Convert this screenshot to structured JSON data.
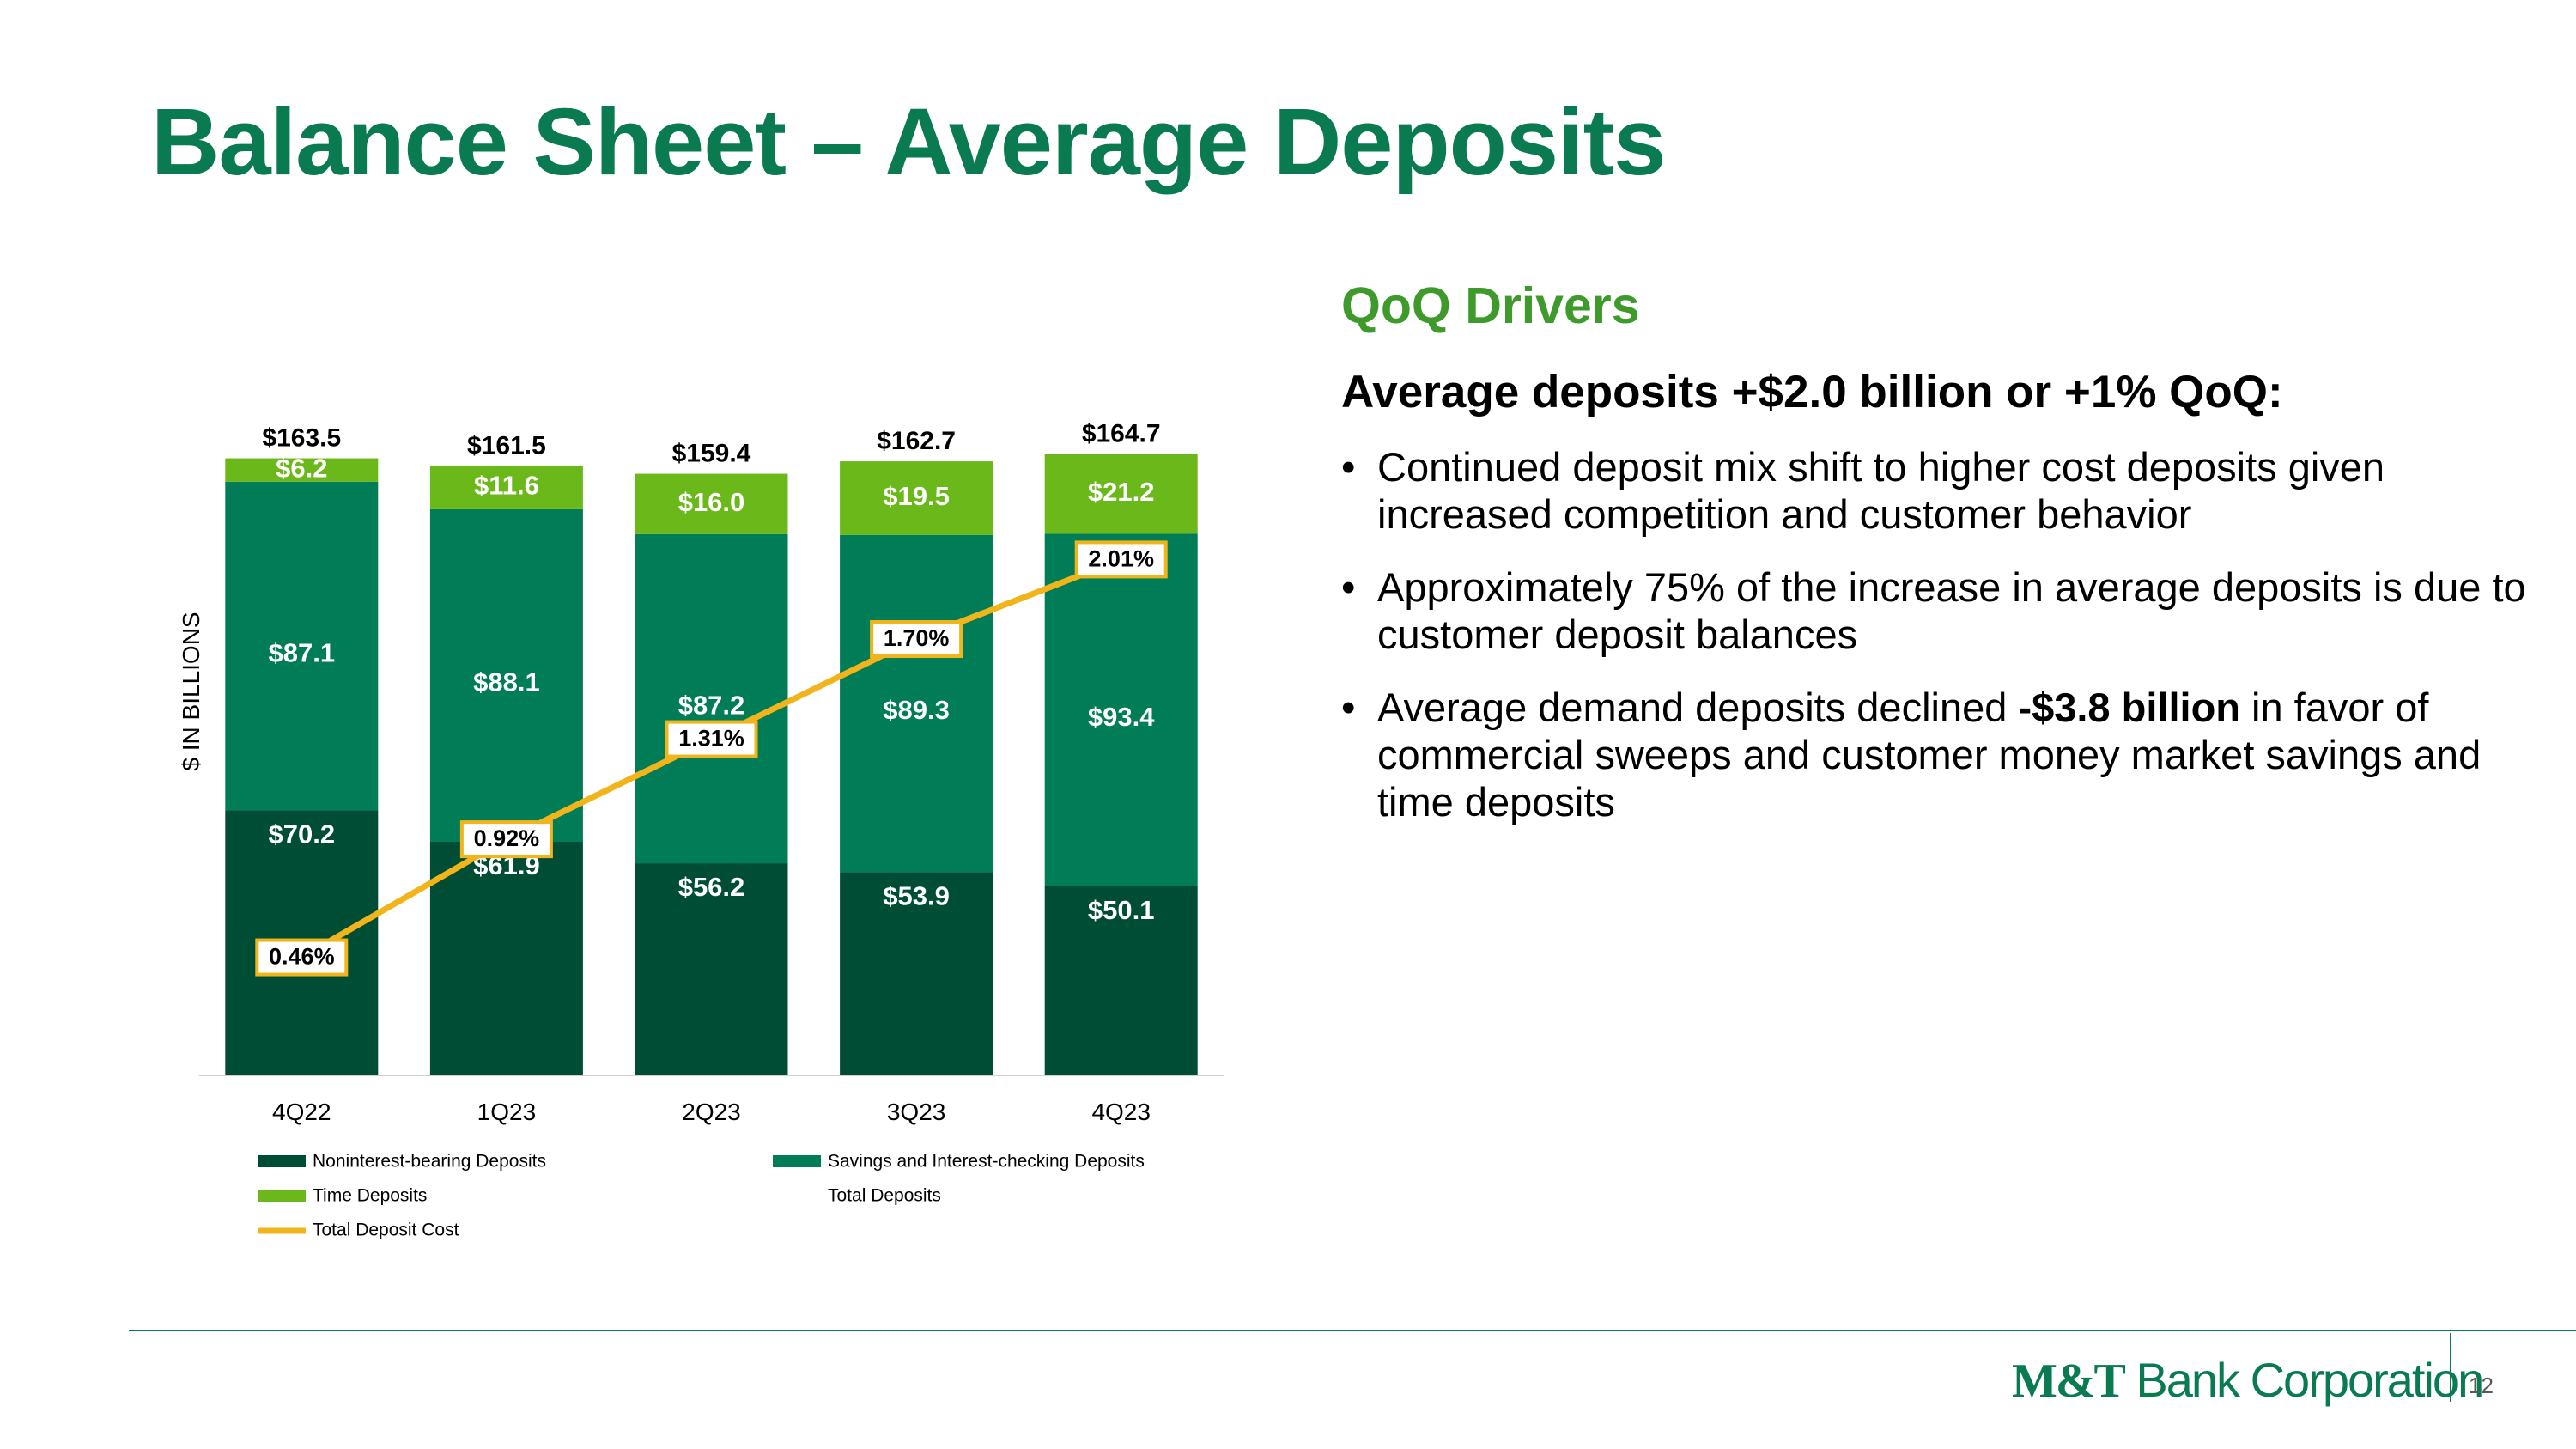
{
  "slide": {
    "title": "Balance Sheet – Average Deposits",
    "page_number": "12"
  },
  "drivers": {
    "heading": "QoQ Drivers",
    "lead": "Average deposits +$2.0 billion or +1% QoQ:",
    "bullets": [
      {
        "text": "Continued deposit mix shift to higher cost deposits given increased competition and customer behavior"
      },
      {
        "text": "Approximately 75% of the increase in average deposits is due to customer deposit balances"
      },
      {
        "pre": "Average demand deposits declined ",
        "bold": "-$3.8 billion",
        "post": " in favor of commercial sweeps and customer money market savings and time deposits"
      }
    ]
  },
  "logo": {
    "mt": "M&T",
    "rest": " Bank Corporation"
  },
  "chart_data": {
    "type": "bar",
    "stacked": true,
    "ylabel": "$ IN BILLIONS",
    "ylim": [
      0,
      170
    ],
    "categories": [
      "4Q22",
      "1Q23",
      "2Q23",
      "3Q23",
      "4Q23"
    ],
    "series": [
      {
        "name": "Noninterest-bearing Deposits",
        "color": "#004d36",
        "labels": [
          "$70.2",
          "$61.9",
          "$56.2",
          "$53.9",
          "$50.1"
        ],
        "values": [
          70.2,
          61.9,
          56.2,
          53.9,
          50.1
        ]
      },
      {
        "name": "Savings and Interest-checking Deposits",
        "color": "#007c56",
        "labels": [
          "$87.1",
          "$88.1",
          "$87.2",
          "$89.3",
          "$93.4"
        ],
        "values": [
          87.1,
          88.1,
          87.2,
          89.3,
          93.4
        ]
      },
      {
        "name": "Time Deposits",
        "color": "#6bb81a",
        "labels": [
          "$6.2",
          "$11.6",
          "$16.0",
          "$19.5",
          "$21.2"
        ],
        "values": [
          6.2,
          11.6,
          16.0,
          19.5,
          21.2
        ]
      }
    ],
    "totals": {
      "name": "Total Deposits",
      "labels": [
        "$163.5",
        "$161.5",
        "$159.4",
        "$162.7",
        "$164.7"
      ],
      "values": [
        163.5,
        161.5,
        159.4,
        162.7,
        164.7
      ]
    },
    "line": {
      "name": "Total Deposit Cost",
      "color": "#f2b41b",
      "labels": [
        "0.46%",
        "0.92%",
        "1.31%",
        "1.70%",
        "2.01%"
      ],
      "values": [
        0.46,
        0.92,
        1.31,
        1.7,
        2.01
      ],
      "ylim": [
        0,
        2.5
      ]
    },
    "legend": [
      {
        "name": "Noninterest-bearing Deposits",
        "swatch": "#004d36",
        "kind": "bar"
      },
      {
        "name": "Savings and Interest-checking Deposits",
        "swatch": "#007c56",
        "kind": "bar"
      },
      {
        "name": "Time Deposits",
        "swatch": "#6bb81a",
        "kind": "bar"
      },
      {
        "name": "Total Deposits",
        "swatch": "",
        "kind": "none"
      },
      {
        "name": "Total Deposit Cost",
        "swatch": "#f2b41b",
        "kind": "line"
      }
    ]
  }
}
